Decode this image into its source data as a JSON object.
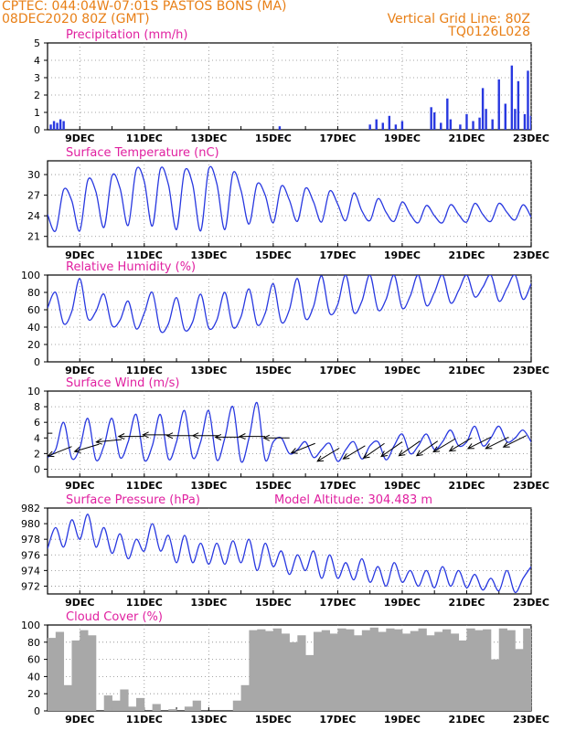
{
  "header": {
    "line1": "CPTEC:   044:04W-07:01S  PASTOS BONS (MA)",
    "line2": "08DEC2020 80Z (GMT)",
    "grid_note": "Vertical Grid Line: 80Z",
    "code": "TQ0126L028"
  },
  "colors": {
    "header": "#e87f16",
    "panel_title": "#e020a0",
    "series": "#2838e0",
    "cloud": "#a8a8a8",
    "wind_arrow": "#000000"
  },
  "x_axis": {
    "labels": [
      "9DEC",
      "11DEC",
      "13DEC",
      "15DEC",
      "17DEC",
      "19DEC",
      "21DEC",
      "23DEC"
    ],
    "label_days": [
      9,
      11,
      13,
      15,
      17,
      19,
      21,
      23
    ],
    "range_days": [
      8.0,
      23.0
    ]
  },
  "panels": {
    "precip": {
      "title": "Precipitation (mm/h)",
      "yticks": [
        "0",
        "1",
        "2",
        "3",
        "4",
        "5"
      ],
      "ylim": [
        0,
        5
      ]
    },
    "temp": {
      "title": "Surface Temperature (nC)",
      "yticks": [
        "21",
        "24",
        "27",
        "30"
      ],
      "ylim": [
        19.5,
        32
      ]
    },
    "rh": {
      "title": "Relative Humidity (%)",
      "yticks": [
        "0",
        "20",
        "40",
        "60",
        "80",
        "100"
      ],
      "ylim": [
        0,
        100
      ]
    },
    "wind": {
      "title": "Surface Wind (m/s)",
      "yticks": [
        "0",
        "2",
        "4",
        "6",
        "8",
        "10"
      ],
      "ylim": [
        -1,
        10
      ]
    },
    "pres": {
      "title": "Surface Pressure (hPa)",
      "subtitle": "Model Altitude: 304.483 m",
      "yticks": [
        "972",
        "974",
        "976",
        "978",
        "980",
        "982"
      ],
      "ylim": [
        971,
        982
      ]
    },
    "cloud": {
      "title": "Cloud Cover (%)",
      "yticks": [
        "0",
        "20",
        "40",
        "60",
        "80",
        "100"
      ],
      "ylim": [
        0,
        100
      ]
    }
  },
  "chart_data": [
    {
      "type": "bar",
      "title": "Precipitation (mm/h)",
      "x": [
        8.1,
        8.2,
        8.3,
        8.4,
        8.5,
        15.2,
        18.0,
        18.2,
        18.4,
        18.6,
        18.8,
        19.0,
        19.9,
        20.0,
        20.2,
        20.4,
        20.5,
        20.8,
        21.0,
        21.2,
        21.4,
        21.5,
        21.6,
        21.8,
        22.0,
        22.2,
        22.4,
        22.5,
        22.6,
        22.8,
        22.9,
        23.0
      ],
      "values": [
        0.3,
        0.5,
        0.4,
        0.6,
        0.5,
        0.2,
        0.3,
        0.6,
        0.4,
        0.8,
        0.3,
        0.5,
        1.3,
        1.0,
        0.4,
        1.8,
        0.6,
        0.3,
        0.9,
        0.5,
        0.7,
        2.4,
        1.2,
        0.6,
        2.9,
        1.5,
        3.7,
        1.2,
        2.8,
        0.9,
        3.4,
        0.8
      ],
      "ylim": [
        0,
        5
      ]
    },
    {
      "type": "line",
      "title": "Surface Temperature (nC)",
      "series": [
        {
          "x_start": 8.0,
          "x_step": 0.25,
          "values": [
            24.2,
            21.8,
            27.8,
            26.2,
            21.8,
            29.2,
            27.5,
            22.3,
            29.8,
            28.0,
            22.6,
            30.7,
            29.0,
            22.5,
            30.8,
            28.5,
            22.0,
            30.5,
            28.6,
            21.8,
            30.8,
            28.7,
            22.0,
            30.2,
            27.7,
            22.8,
            28.6,
            27.0,
            23.0,
            28.3,
            26.3,
            23.2,
            28.0,
            26.0,
            23.1,
            27.6,
            25.7,
            23.3,
            27.3,
            24.7,
            23.3,
            26.5,
            24.5,
            23.2,
            26.0,
            24.2,
            23.0,
            25.5,
            24.0,
            23.0,
            25.6,
            24.2,
            23.1,
            25.8,
            24.2,
            23.2,
            25.8,
            24.5,
            23.4,
            25.6,
            23.8
          ]
        }
      ],
      "ylim": [
        19.5,
        32
      ]
    },
    {
      "type": "line",
      "title": "Relative Humidity (%)",
      "series": [
        {
          "x_start": 8.0,
          "x_step": 0.25,
          "values": [
            62,
            80,
            44,
            58,
            96,
            50,
            58,
            78,
            42,
            48,
            70,
            38,
            56,
            80,
            36,
            44,
            74,
            37,
            46,
            78,
            39,
            48,
            80,
            40,
            52,
            84,
            43,
            56,
            90,
            46,
            60,
            96,
            50,
            64,
            99,
            56,
            66,
            100,
            57,
            70,
            100,
            60,
            72,
            100,
            62,
            76,
            100,
            65,
            80,
            100,
            68,
            82,
            100,
            75,
            86,
            100,
            70,
            85,
            100,
            72,
            90
          ]
        }
      ],
      "ylim": [
        0,
        100
      ]
    },
    {
      "type": "line",
      "title": "Surface Wind (m/s)",
      "series": [
        {
          "x_start": 8.0,
          "x_step": 0.25,
          "values": [
            1.5,
            2.5,
            6.0,
            1.4,
            2.7,
            6.5,
            1.2,
            3.0,
            6.5,
            1.5,
            3.5,
            7.0,
            1.2,
            3.0,
            7.0,
            1.3,
            3.5,
            7.5,
            1.5,
            3.5,
            7.5,
            1.2,
            4.0,
            8.0,
            1.0,
            4.0,
            8.5,
            1.2,
            3.5,
            4.0,
            2.0,
            2.5,
            3.5,
            1.5,
            2.5,
            3.3,
            1.0,
            2.5,
            3.5,
            1.3,
            3.0,
            3.5,
            1.2,
            3.0,
            4.5,
            2.0,
            3.0,
            4.5,
            2.5,
            3.5,
            5.0,
            3.0,
            3.5,
            5.5,
            3.0,
            4.0,
            5.5,
            3.5,
            4.0,
            5.0,
            3.5
          ]
        }
      ],
      "arrows": {
        "x": [
          8.15,
          8.75,
          9.6,
          10.3,
          11.0,
          11.75,
          12.5,
          13.3,
          14.0,
          14.75,
          15.5,
          16.3,
          17.05,
          17.85,
          18.45,
          19.0,
          19.55,
          20.1,
          20.65,
          21.15,
          21.75,
          22.3,
          22.85
        ],
        "y": [
          4.6,
          2.9,
          3.2,
          3.8,
          4.2,
          4.4,
          4.3,
          4.3,
          4.1,
          4.2,
          4.0,
          3.3,
          2.7,
          3.0,
          3.3,
          3.5,
          3.6,
          3.6,
          3.9,
          4.0,
          4.1,
          4.1,
          4.3
        ],
        "u": [
          -1,
          -1,
          -1,
          -1,
          -1,
          -1,
          -1,
          -1,
          -1,
          -1,
          -1,
          -1,
          -1,
          -1,
          -1,
          -1,
          -1,
          -1,
          -1,
          -1,
          -1,
          -1,
          -1
        ],
        "v": [
          0,
          -0.4,
          -0.3,
          -0.1,
          0,
          0,
          0,
          0,
          0,
          0,
          0,
          -0.4,
          -0.6,
          -0.6,
          -0.7,
          -0.7,
          -0.7,
          -0.7,
          -0.6,
          -0.6,
          -0.5,
          -0.5,
          -0.5
        ]
      },
      "ylim": [
        -1,
        10
      ]
    },
    {
      "type": "line",
      "title": "Surface Pressure (hPa)",
      "series": [
        {
          "x_start": 8.0,
          "x_step": 0.25,
          "values": [
            976.8,
            979.5,
            977.0,
            980.5,
            978.0,
            981.2,
            977.0,
            979.5,
            976.2,
            978.7,
            975.5,
            978.0,
            976.5,
            980.0,
            976.5,
            978.5,
            975.0,
            978.5,
            975.0,
            977.5,
            974.8,
            977.5,
            974.8,
            977.8,
            975.0,
            978.0,
            974.0,
            977.5,
            974.5,
            976.5,
            973.5,
            976.0,
            974.0,
            976.5,
            973.0,
            976.0,
            973.0,
            975.0,
            972.8,
            975.5,
            972.5,
            974.5,
            972.0,
            975.0,
            972.5,
            974.0,
            972.0,
            974.0,
            971.8,
            974.5,
            972.0,
            974.0,
            971.8,
            973.5,
            971.5,
            973.0,
            971.4,
            974.0,
            971.2,
            973.0,
            974.5
          ]
        }
      ],
      "ylim": [
        971,
        982
      ]
    },
    {
      "type": "area",
      "title": "Cloud Cover (%)",
      "series": [
        {
          "x_start": 8.0,
          "x_step": 0.25,
          "values": [
            85,
            92,
            30,
            82,
            94,
            88,
            0,
            18,
            12,
            25,
            5,
            15,
            0,
            8,
            0,
            2,
            0,
            5,
            12,
            0,
            0,
            0,
            0,
            12,
            30,
            94,
            95,
            93,
            96,
            90,
            80,
            88,
            65,
            92,
            94,
            90,
            96,
            95,
            88,
            94,
            97,
            92,
            96,
            95,
            90,
            93,
            96,
            88,
            92,
            95,
            90,
            82,
            96,
            94,
            95,
            60,
            96,
            94,
            72,
            96,
            95
          ]
        }
      ],
      "ylim": [
        0,
        100
      ]
    }
  ]
}
